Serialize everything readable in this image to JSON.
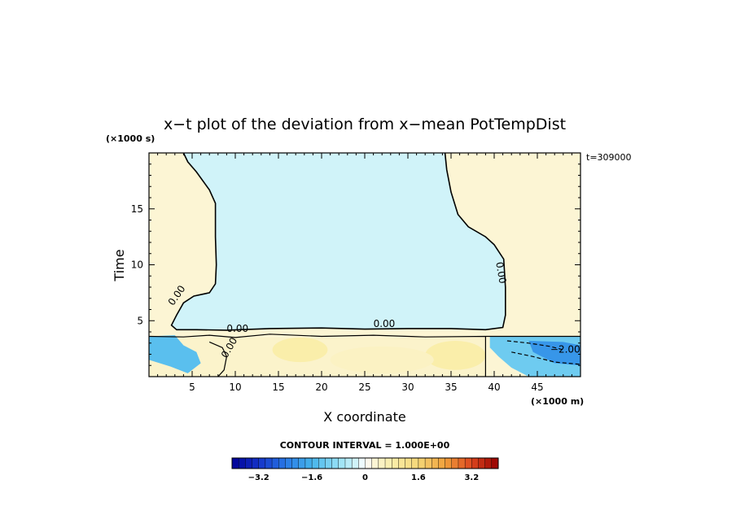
{
  "chart_data": {
    "type": "heatmap",
    "title": "x−t plot of the deviation from x−mean PotTempDist",
    "xlabel": "X coordinate",
    "ylabel": "Time",
    "x_unit": "(×1000 m)",
    "y_unit": "(×1000 s)",
    "time_stamp": "t=309000",
    "xlim": [
      0,
      50
    ],
    "ylim": [
      0,
      20
    ],
    "x_ticks": [
      5,
      10,
      15,
      20,
      25,
      30,
      35,
      40,
      45
    ],
    "y_ticks": [
      5,
      10,
      15
    ],
    "contour_interval_text": "CONTOUR INTERVAL = 1.000E+00",
    "contour_labels": [
      "0.00",
      "0.00",
      "0.00",
      "0.00",
      "0.00",
      "−2.00"
    ],
    "regions": [
      {
        "name": "negative-upper",
        "value": -0.3
      },
      {
        "name": "positive-left",
        "value": 0.3
      },
      {
        "name": "positive-right",
        "value": 0.3
      },
      {
        "name": "lower-band",
        "value": 0.5
      },
      {
        "name": "cold-pool-right",
        "value": -2.0
      }
    ],
    "colorbar": {
      "min": -4,
      "max": 4,
      "step": 0.2,
      "tick_values": [
        -3.2,
        -1.6,
        0,
        1.6,
        3.2
      ],
      "tick_labels": [
        "−3.2",
        "−1.6",
        "0",
        "1.6",
        "3.2"
      ]
    }
  }
}
